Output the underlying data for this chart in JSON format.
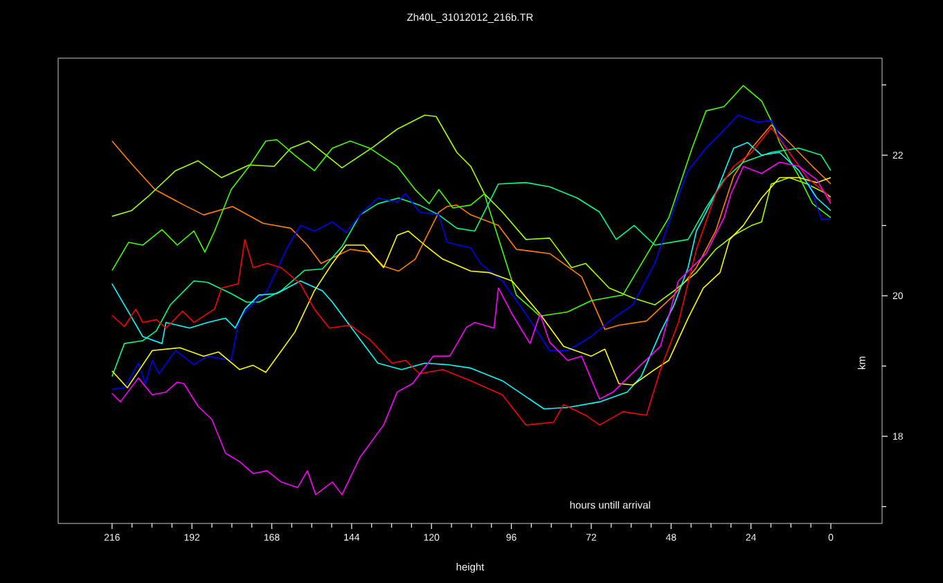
{
  "chart_data": {
    "type": "line",
    "title": "Zh40L_31012012_216b.TR",
    "xlabel": "height",
    "ylabel": "km",
    "annotations": [
      "hours untill arrival"
    ],
    "xlim": [
      232.2,
      -15.4
    ],
    "ylim": [
      16.76,
      23.38
    ],
    "xticks": [
      216,
      {
        "value": 210,
        "label": null
      },
      {
        "value": 204,
        "label": null
      },
      {
        "value": 198,
        "label": null
      },
      192,
      {
        "value": 186,
        "label": null
      },
      {
        "value": 180,
        "label": null
      },
      {
        "value": 174,
        "label": null
      },
      168,
      {
        "value": 162,
        "label": null
      },
      {
        "value": 156,
        "label": null
      },
      {
        "value": 150,
        "label": null
      },
      144,
      {
        "value": 138,
        "label": null
      },
      {
        "value": 132,
        "label": null
      },
      {
        "value": 126,
        "label": null
      },
      120,
      {
        "value": 114,
        "label": null
      },
      {
        "value": 108,
        "label": null
      },
      {
        "value": 102,
        "label": null
      },
      96,
      {
        "value": 90,
        "label": null
      },
      {
        "value": 84,
        "label": null
      },
      {
        "value": 78,
        "label": null
      },
      72,
      {
        "value": 66,
        "label": null
      },
      {
        "value": 60,
        "label": null
      },
      {
        "value": 54,
        "label": null
      },
      48,
      {
        "value": 42,
        "label": null
      },
      {
        "value": 36,
        "label": null
      },
      {
        "value": 30,
        "label": null
      },
      24,
      {
        "value": 18,
        "label": null
      },
      {
        "value": 12,
        "label": null
      },
      {
        "value": 6,
        "label": null
      },
      0
    ],
    "yticks": [
      {
        "value": 17,
        "label": null
      },
      18,
      {
        "value": 19,
        "label": null
      },
      20,
      {
        "value": 21,
        "label": null
      },
      22,
      {
        "value": 23,
        "label": null
      }
    ],
    "marker": "none",
    "series": [
      {
        "color": "#ff8000",
        "x": [
          216,
          210.2,
          203.1,
          194.4,
          188.5,
          179.8,
          170.6,
          162.3,
          157.3,
          153.2,
          144.4,
          138.6,
          134.4,
          129.9,
          124.9,
          117.8,
          115.3,
          112.4,
          108.2,
          99.9,
          94.5,
          84.5,
          74.9,
          67.9,
          63.7,
          55.4,
          47.1,
          40.4,
          34.6,
          29.2,
          23.8,
          17.9,
          12.5,
          5.5,
          0
        ],
        "values": [
          22.2,
          21.88,
          21.51,
          21.29,
          21.15,
          21.27,
          21.03,
          20.96,
          20.72,
          20.46,
          20.66,
          20.62,
          20.42,
          20.35,
          20.52,
          21.19,
          21.27,
          21.29,
          21.15,
          21.0,
          20.66,
          20.6,
          20.27,
          19.52,
          19.58,
          19.64,
          20.01,
          20.4,
          20.92,
          21.7,
          22.1,
          22.43,
          22.18,
          21.84,
          21.59
        ]
      },
      {
        "color": "#a0ff00",
        "x": [
          216,
          210.2,
          205.2,
          196.9,
          190.2,
          183.1,
          174.8,
          167.3,
          162.3,
          156.9,
          146.9,
          137.4,
          130.3,
          122.0,
          118.6,
          112.4,
          108.2,
          104.1,
          98.7,
          91.6,
          84.5,
          77.9,
          73.7,
          66.6,
          59.5,
          52.9,
          47.1,
          40.4,
          34.6,
          29.2,
          23.8,
          20.8,
          17.9,
          12.5,
          7.1,
          1.3,
          0
        ],
        "values": [
          21.13,
          21.21,
          21.41,
          21.78,
          21.92,
          21.68,
          21.86,
          21.84,
          22.1,
          22.2,
          21.82,
          22.12,
          22.37,
          22.57,
          22.55,
          22.04,
          21.84,
          21.45,
          21.19,
          20.8,
          20.82,
          20.4,
          20.46,
          20.11,
          19.97,
          19.87,
          20.07,
          20.33,
          20.66,
          20.86,
          21.0,
          21.05,
          21.59,
          21.68,
          21.59,
          21.45,
          21.4
        ]
      },
      {
        "color": "#40ff00",
        "x": [
          216,
          211.0,
          206.8,
          201.0,
          196.4,
          191.4,
          188.1,
          185.2,
          180.2,
          174.8,
          169.8,
          166.5,
          161.1,
          155.2,
          149.8,
          144.4,
          138.6,
          130.3,
          124.9,
          120.7,
          117.8,
          113.6,
          108.2,
          104.1,
          94.5,
          87.4,
          79.1,
          72.0,
          62.5,
          48.7,
          41.7,
          37.5,
          32.1,
          26.3,
          20.8,
          17.9,
          15.4,
          9.6,
          5.5,
          0
        ],
        "values": [
          20.36,
          20.76,
          20.72,
          20.94,
          20.72,
          20.92,
          20.62,
          20.92,
          21.51,
          21.84,
          22.2,
          22.22,
          22.0,
          21.78,
          22.1,
          22.2,
          22.1,
          21.84,
          21.51,
          21.31,
          21.51,
          21.25,
          21.29,
          21.45,
          20.01,
          19.71,
          19.77,
          19.93,
          20.01,
          21.11,
          22.1,
          22.63,
          22.69,
          22.99,
          22.77,
          22.49,
          22.18,
          21.7,
          21.31,
          21.11
        ]
      },
      {
        "color": "#00ff80",
        "x": [
          216,
          212.3,
          206.8,
          202.7,
          198.5,
          191.4,
          187.3,
          180.2,
          175.6,
          171.9,
          165.2,
          158.2,
          152.8,
          146.9,
          141.5,
          136.1,
          129.9,
          123.6,
          117.8,
          112.4,
          107.0,
          99.9,
          91.6,
          84.5,
          76.2,
          69.5,
          64.5,
          59.1,
          52.9,
          42.9,
          37.5,
          32.1,
          26.3,
          17.9,
          9.6,
          2.9,
          0
        ],
        "values": [
          18.85,
          19.32,
          19.36,
          19.5,
          19.87,
          20.21,
          20.19,
          20.03,
          19.91,
          19.91,
          20.07,
          20.36,
          20.38,
          20.7,
          21.15,
          21.31,
          21.39,
          21.29,
          21.15,
          20.96,
          20.92,
          21.59,
          21.61,
          21.55,
          21.39,
          21.19,
          20.8,
          21.0,
          20.72,
          20.8,
          21.25,
          21.65,
          21.9,
          22.04,
          22.1,
          22.0,
          21.78
        ]
      },
      {
        "color": "#0000ff",
        "x": [
          216,
          212.3,
          208.1,
          206.0,
          203.9,
          201.9,
          196.9,
          191.4,
          187.3,
          180.2,
          177.7,
          174.8,
          169.4,
          163.6,
          159.4,
          155.2,
          149.8,
          145.7,
          140.7,
          136.1,
          130.3,
          127.8,
          123.6,
          117.8,
          115.3,
          108.2,
          105.3,
          98.7,
          91.6,
          84.5,
          79.1,
          72.0,
          65.4,
          59.5,
          52.9,
          47.1,
          42.9,
          37.5,
          33.3,
          27.9,
          22.1,
          17.9,
          12.5,
          7.1,
          2.9,
          0
        ],
        "values": [
          18.67,
          18.69,
          19.04,
          18.75,
          19.08,
          18.89,
          19.22,
          19.02,
          19.14,
          19.08,
          19.68,
          19.83,
          20.07,
          20.66,
          21.0,
          20.92,
          21.05,
          20.9,
          21.19,
          21.39,
          21.33,
          21.45,
          21.19,
          21.15,
          20.76,
          20.68,
          20.46,
          20.21,
          19.74,
          19.22,
          19.22,
          19.42,
          19.68,
          19.87,
          20.46,
          21.25,
          21.78,
          22.1,
          22.3,
          22.57,
          22.47,
          22.49,
          22.04,
          21.7,
          21.09,
          21.09
        ]
      },
      {
        "color": "#00ffff",
        "x": [
          216,
          212.3,
          206.8,
          201.0,
          199.8,
          192.7,
          187.3,
          181.9,
          179.0,
          176.1,
          171.9,
          166.5,
          159.4,
          152.8,
          149.8,
          141.5,
          136.1,
          129.0,
          122.0,
          115.3,
          108.2,
          98.7,
          86.2,
          79.1,
          69.5,
          61.2,
          57.0,
          51.2,
          47.1,
          42.9,
          40.4,
          34.6,
          29.2,
          25.0,
          20.8,
          15.4,
          9.6,
          4.2,
          0
        ],
        "values": [
          20.17,
          19.87,
          19.42,
          19.32,
          19.62,
          19.54,
          19.62,
          19.68,
          19.54,
          19.81,
          20.01,
          20.03,
          20.21,
          20.07,
          19.91,
          19.38,
          19.04,
          18.95,
          19.04,
          19.02,
          18.97,
          18.79,
          18.39,
          18.41,
          18.49,
          18.63,
          18.85,
          19.48,
          19.87,
          20.4,
          20.92,
          21.45,
          22.1,
          22.18,
          22.0,
          22.04,
          21.78,
          21.39,
          21.21
        ]
      },
      {
        "color": "#ffff00",
        "x": [
          216,
          211.4,
          203.9,
          195.6,
          188.5,
          184.0,
          177.7,
          173.6,
          169.8,
          161.1,
          155.2,
          149.8,
          145.7,
          140.3,
          134.4,
          130.3,
          127.0,
          122.0,
          116.6,
          108.2,
          102.8,
          95.8,
          87.4,
          80.3,
          72.0,
          67.9,
          63.7,
          59.5,
          52.9,
          48.7,
          42.9,
          38.3,
          33.3,
          30.4,
          26.3,
          20.8,
          15.4,
          9.6,
          4.2,
          0
        ],
        "values": [
          18.93,
          18.69,
          19.22,
          19.26,
          19.14,
          19.2,
          18.95,
          19.01,
          18.91,
          19.48,
          20.07,
          20.46,
          20.72,
          20.72,
          20.4,
          20.86,
          20.92,
          20.72,
          20.52,
          20.35,
          20.33,
          20.21,
          19.74,
          19.28,
          19.14,
          19.24,
          18.75,
          18.73,
          18.95,
          19.08,
          19.68,
          20.11,
          20.33,
          20.8,
          21.0,
          21.39,
          21.68,
          21.68,
          21.61,
          21.68
        ]
      },
      {
        "color": "#ff0000",
        "x": [
          216,
          212.3,
          208.9,
          206.8,
          202.7,
          199.8,
          194.8,
          191.4,
          185.2,
          183.1,
          178.1,
          176.1,
          173.6,
          169.4,
          165.2,
          159.4,
          155.2,
          150.7,
          144.4,
          138.6,
          131.9,
          127.8,
          123.6,
          116.6,
          108.2,
          98.7,
          91.6,
          83.3,
          80.3,
          73.7,
          69.5,
          62.5,
          55.4,
          51.2,
          45.8,
          40.4,
          34.6,
          29.2,
          23.8,
          17.9,
          12.5,
          7.1,
          1.3,
          0
        ],
        "values": [
          19.72,
          19.56,
          19.81,
          19.62,
          19.66,
          19.54,
          19.78,
          19.62,
          19.81,
          20.11,
          20.17,
          20.8,
          20.4,
          20.46,
          20.4,
          20.17,
          19.81,
          19.54,
          19.58,
          19.38,
          19.04,
          19.08,
          18.89,
          18.95,
          18.79,
          18.59,
          18.16,
          18.2,
          18.45,
          18.3,
          18.16,
          18.35,
          18.3,
          18.95,
          19.62,
          20.66,
          21.45,
          21.84,
          22.04,
          22.39,
          22.04,
          21.68,
          21.45,
          21.35
        ]
      },
      {
        "color": "#ff00ff",
        "x": [
          216,
          213.5,
          208.1,
          203.9,
          199.8,
          196.4,
          194.4,
          190.2,
          186.0,
          181.9,
          177.7,
          173.6,
          169.4,
          165.2,
          160.2,
          157.3,
          154.8,
          149.8,
          146.9,
          141.5,
          134.4,
          130.3,
          125.7,
          119.5,
          114.5,
          109.5,
          107.0,
          101.2,
          99.9,
          95.8,
          90.4,
          87.4,
          84.5,
          79.1,
          74.9,
          69.5,
          65.4,
          57.0,
          51.2,
          45.8,
          37.5,
          32.1,
          30.0,
          26.3,
          20.8,
          15.4,
          9.6,
          4.2,
          0
        ],
        "values": [
          18.61,
          18.49,
          18.83,
          18.59,
          18.63,
          18.77,
          18.75,
          18.43,
          18.24,
          17.76,
          17.64,
          17.47,
          17.51,
          17.35,
          17.27,
          17.51,
          17.17,
          17.35,
          17.17,
          17.7,
          18.16,
          18.63,
          18.75,
          19.14,
          19.14,
          19.55,
          19.62,
          19.54,
          20.11,
          19.74,
          19.32,
          19.74,
          19.34,
          19.08,
          19.14,
          18.53,
          18.63,
          19.02,
          19.28,
          20.21,
          20.6,
          21.11,
          21.45,
          21.84,
          21.74,
          21.9,
          21.84,
          21.65,
          21.31
        ]
      }
    ]
  }
}
